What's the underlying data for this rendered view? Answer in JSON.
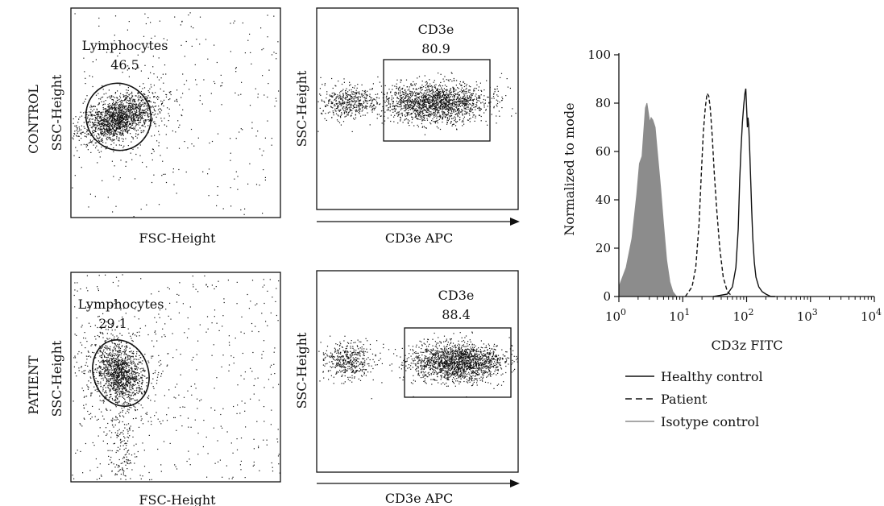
{
  "chart_data": [
    {
      "type": "scatter",
      "panel": "control-fsc-ssc",
      "row_label": "CONTROL",
      "xlabel": "FSC-Height",
      "ylabel": "SSC-Height",
      "gate": {
        "shape": "ellipse",
        "label": "Lymphocytes",
        "value": "46.5"
      }
    },
    {
      "type": "scatter",
      "panel": "control-cd3e",
      "xlabel": "CD3e APC",
      "ylabel": "SSC-Height",
      "gate": {
        "shape": "rectangle",
        "label": "CD3e",
        "value": "80.9"
      }
    },
    {
      "type": "scatter",
      "panel": "patient-fsc-ssc",
      "row_label": "PATIENT",
      "xlabel": "FSC-Height",
      "ylabel": "SSC-Height",
      "gate": {
        "shape": "ellipse",
        "label": "Lymphocytes",
        "value": "29.1"
      }
    },
    {
      "type": "scatter",
      "panel": "patient-cd3e",
      "xlabel": "CD3e APC",
      "ylabel": "SSC-Height",
      "gate": {
        "shape": "rectangle",
        "label": "CD3e",
        "value": "88.4"
      }
    },
    {
      "type": "line",
      "panel": "cd3z-histogram",
      "xlabel": "CD3z FITC",
      "ylabel": "Normalized to mode",
      "xscale": "log",
      "xlim": [
        1,
        10000
      ],
      "ylim": [
        0,
        100
      ],
      "xticks": [
        "10",
        "10",
        "10",
        "10",
        "10"
      ],
      "xtick_exponents": [
        "0",
        "1",
        "2",
        "3",
        "4"
      ],
      "yticks": [
        "0",
        "20",
        "40",
        "60",
        "80",
        "100"
      ],
      "legend_position": "bottom-left",
      "series": [
        {
          "name": "Healthy control",
          "style": "solid",
          "color": "#111111",
          "x": [
            30,
            50,
            60,
            68,
            74,
            78,
            82,
            86,
            90,
            94,
            97,
            100,
            103,
            105,
            108,
            112,
            116,
            120,
            125,
            132,
            140,
            155,
            175,
            200,
            240,
            280
          ],
          "y": [
            0,
            1,
            4,
            12,
            28,
            48,
            62,
            72,
            79,
            84,
            86,
            78,
            70,
            74,
            71,
            60,
            48,
            36,
            24,
            14,
            8,
            4,
            2,
            1,
            0,
            0
          ]
        },
        {
          "name": "Patient",
          "style": "dashed",
          "color": "#111111",
          "x": [
            11,
            14,
            16,
            18,
            19.5,
            21,
            22.5,
            24,
            25.5,
            27,
            29,
            31,
            34,
            38,
            43,
            50,
            60
          ],
          "y": [
            0,
            4,
            12,
            30,
            50,
            68,
            78,
            84,
            83,
            78,
            66,
            52,
            36,
            20,
            8,
            2,
            0
          ]
        },
        {
          "name": "Isotype control",
          "style": "filled",
          "color": "#8c8c8c",
          "x": [
            1,
            1.3,
            1.6,
            1.9,
            2.1,
            2.3,
            2.45,
            2.6,
            2.75,
            2.9,
            3.05,
            3.2,
            3.4,
            3.7,
            4.0,
            4.5,
            5.0,
            5.6,
            6.3,
            7.0,
            8.0
          ],
          "y": [
            4,
            12,
            24,
            42,
            55,
            58,
            68,
            78,
            80,
            76,
            72,
            74,
            73,
            70,
            60,
            45,
            30,
            15,
            6,
            2,
            0
          ]
        }
      ]
    }
  ]
}
